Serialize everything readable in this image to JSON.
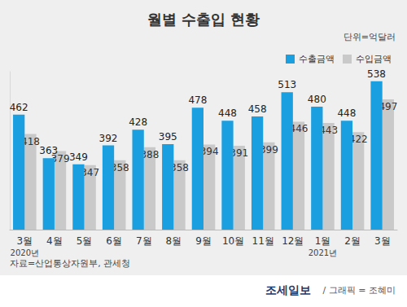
{
  "chart_data": {
    "type": "bar",
    "title": "월별 수출입 현황",
    "unit_note": "단위=억달러",
    "source": "자료=산업통상자원부, 관세청",
    "credit": [
      "조세일보",
      "/ 그래픽 = 조혜미"
    ],
    "categories": [
      "3월",
      "4월",
      "5월",
      "6월",
      "7월",
      "8월",
      "9월",
      "10월",
      "11월",
      "12월",
      "1월",
      "2월",
      "3월"
    ],
    "year_labels": [
      "2020년",
      null,
      null,
      null,
      null,
      null,
      null,
      null,
      null,
      null,
      "2021년",
      null,
      null
    ],
    "series": [
      {
        "name": "수출금액",
        "color": "#1a9fe0",
        "values": [
          462,
          363,
          349,
          392,
          428,
          395,
          478,
          448,
          458,
          513,
          480,
          448,
          538
        ]
      },
      {
        "name": "수입금액",
        "color": "#c9c9c9",
        "values": [
          418,
          379,
          347,
          358,
          388,
          358,
          394,
          391,
          399,
          446,
          443,
          422,
          497
        ]
      }
    ],
    "ylim": [
      200,
      560
    ],
    "yticks": [],
    "grid": false,
    "legend": "top-right",
    "data_labels": true,
    "tick_labels": "x"
  }
}
